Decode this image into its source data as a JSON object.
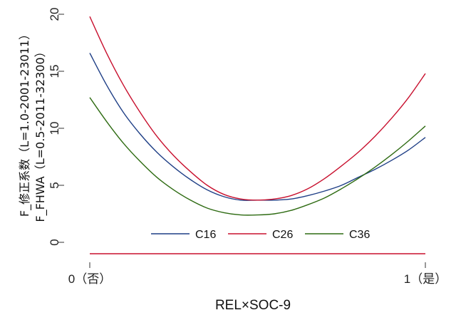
{
  "chart_data": {
    "type": "line",
    "xlabel": "REL×SOC-9",
    "ylabel_lines": [
      "F_修正系数（L=1.0-2001-23011）",
      "F_FHWA（L=0.5-2011-32300）"
    ],
    "x_ticks": [
      "0（否）",
      "1（是）"
    ],
    "y_ticks": [
      0,
      5,
      10,
      15,
      20
    ],
    "xlim": [
      0,
      1
    ],
    "ylim": [
      -1.5,
      20.5
    ],
    "x": [
      0,
      0.05,
      0.1,
      0.15,
      0.2,
      0.25,
      0.3,
      0.35,
      0.4,
      0.45,
      0.5,
      0.55,
      0.6,
      0.65,
      0.7,
      0.75,
      0.8,
      0.85,
      0.9,
      0.95,
      1.0
    ],
    "series": [
      {
        "name": "C16",
        "color": "#1f3f86",
        "values": [
          16.6,
          13.8,
          11.4,
          9.5,
          7.9,
          6.6,
          5.5,
          4.6,
          4.0,
          3.7,
          3.7,
          3.7,
          3.8,
          4.1,
          4.5,
          5.0,
          5.7,
          6.4,
          7.2,
          8.1,
          9.2
        ]
      },
      {
        "name": "C26",
        "color": "#c8102e",
        "values": [
          19.8,
          16.6,
          13.8,
          11.4,
          9.3,
          7.6,
          6.2,
          5.0,
          4.2,
          3.8,
          3.7,
          3.8,
          4.1,
          4.7,
          5.6,
          6.7,
          7.9,
          9.3,
          10.9,
          12.7,
          14.8
        ]
      },
      {
        "name": "C36",
        "color": "#2e6b12",
        "values": [
          12.7,
          10.6,
          8.7,
          7.1,
          5.7,
          4.6,
          3.7,
          3.0,
          2.6,
          2.4,
          2.4,
          2.5,
          2.8,
          3.3,
          3.9,
          4.7,
          5.6,
          6.6,
          7.7,
          8.9,
          10.2
        ]
      },
      {
        "name": "",
        "color": "#c8102e",
        "values": [
          -1,
          -1,
          -1,
          -1,
          -1,
          -1,
          -1,
          -1,
          -1,
          -1,
          -1,
          -1,
          -1,
          -1,
          -1,
          -1,
          -1,
          -1,
          -1,
          -1,
          -1
        ]
      }
    ],
    "legend": [
      "C16",
      "C26",
      "C36"
    ],
    "legend_position": "lower-center",
    "grid": false
  }
}
